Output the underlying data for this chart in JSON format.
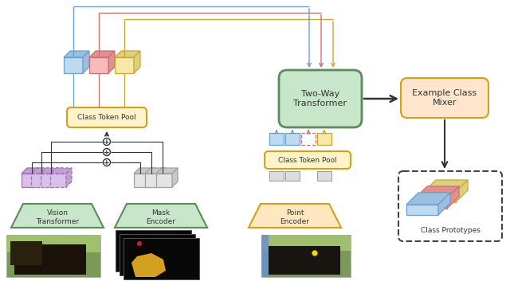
{
  "bg": "#ffffff",
  "blue": {
    "f": "#BEDAF0",
    "e": "#6B9FCC",
    "d": "#9BBFE0"
  },
  "red": {
    "f": "#F5BBBB",
    "e": "#CC7070",
    "d": "#E09090"
  },
  "yel": {
    "f": "#F5E8A8",
    "e": "#C8A830",
    "d": "#DDD080"
  },
  "pur": {
    "f": "#D8C0E8",
    "e": "#A070B8",
    "d": "#C0A0D0"
  },
  "gray": {
    "f": "#E4E4E4",
    "e": "#A0A0A0",
    "d": "#C8C8C8"
  },
  "green_box": {
    "f": "#C8E6C9",
    "e": "#5B8A5B"
  },
  "yel_box": {
    "f": "#FFF3CC",
    "e": "#D4A017"
  },
  "oran_box": {
    "f": "#FFE5CC",
    "e": "#D4A017"
  },
  "trap_green": {
    "f": "#C8E6C9",
    "e": "#5B8A5B"
  },
  "trap_yel": {
    "f": "#FFE8C0",
    "e": "#D4A017"
  },
  "ac_blue": "#6B9FCC",
  "ac_red": "#CC7070",
  "ac_yel": "#C8A830",
  "ac_blk": "#333333",
  "titles": {
    "two_way": "Two-Way\nTransformer",
    "ecm": "Example Class\nMixer",
    "ctp": "Class Token Pool",
    "pt_enc": "Point\nEncoder",
    "vis_tr": "Vision\nTransformer",
    "msk_enc": "Mask\nEncoder",
    "cp": "Class Prototypes"
  }
}
